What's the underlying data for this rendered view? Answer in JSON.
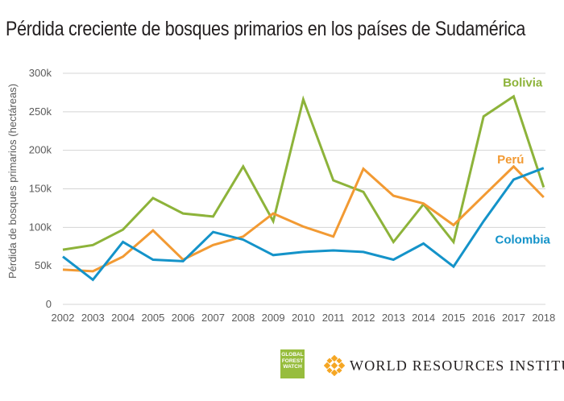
{
  "chart_data": {
    "type": "line",
    "title": "Pérdida creciente de bosques primarios en los países de Sudamérica",
    "xlabel": "",
    "ylabel": "Pérdida de bosques primarios (hectáreas)",
    "categories": [
      "2002",
      "2003",
      "2004",
      "2005",
      "2006",
      "2007",
      "2008",
      "2009",
      "2010",
      "2011",
      "2012",
      "2013",
      "2014",
      "2015",
      "2016",
      "2017",
      "2018"
    ],
    "ylim": [
      0,
      300000
    ],
    "yticks": [
      0,
      50000,
      100000,
      150000,
      200000,
      250000,
      300000
    ],
    "ytick_labels": [
      "0",
      "50k",
      "100k",
      "150k",
      "200k",
      "250k",
      "300k"
    ],
    "grid": true,
    "series": [
      {
        "name": "Bolivia",
        "color": "#8db33a",
        "values": [
          71000,
          77000,
          97000,
          138000,
          118000,
          114000,
          179000,
          108000,
          266000,
          161000,
          146000,
          81000,
          130000,
          81000,
          244000,
          270000,
          152000
        ]
      },
      {
        "name": "Perú",
        "color": "#f29a33",
        "values": [
          45000,
          43000,
          62000,
          96000,
          58000,
          77000,
          88000,
          118000,
          101000,
          88000,
          176000,
          141000,
          131000,
          103000,
          141000,
          179000,
          139000
        ]
      },
      {
        "name": "Colombia",
        "color": "#1493c9",
        "values": [
          62000,
          32000,
          81000,
          58000,
          56000,
          94000,
          84000,
          64000,
          68000,
          70000,
          68000,
          58000,
          79000,
          49000,
          108000,
          162000,
          177000
        ]
      }
    ]
  },
  "logos": {
    "gfw": "GLOBAL FOREST WATCH",
    "wri": "WORLD RESOURCES INSTITUTE"
  }
}
